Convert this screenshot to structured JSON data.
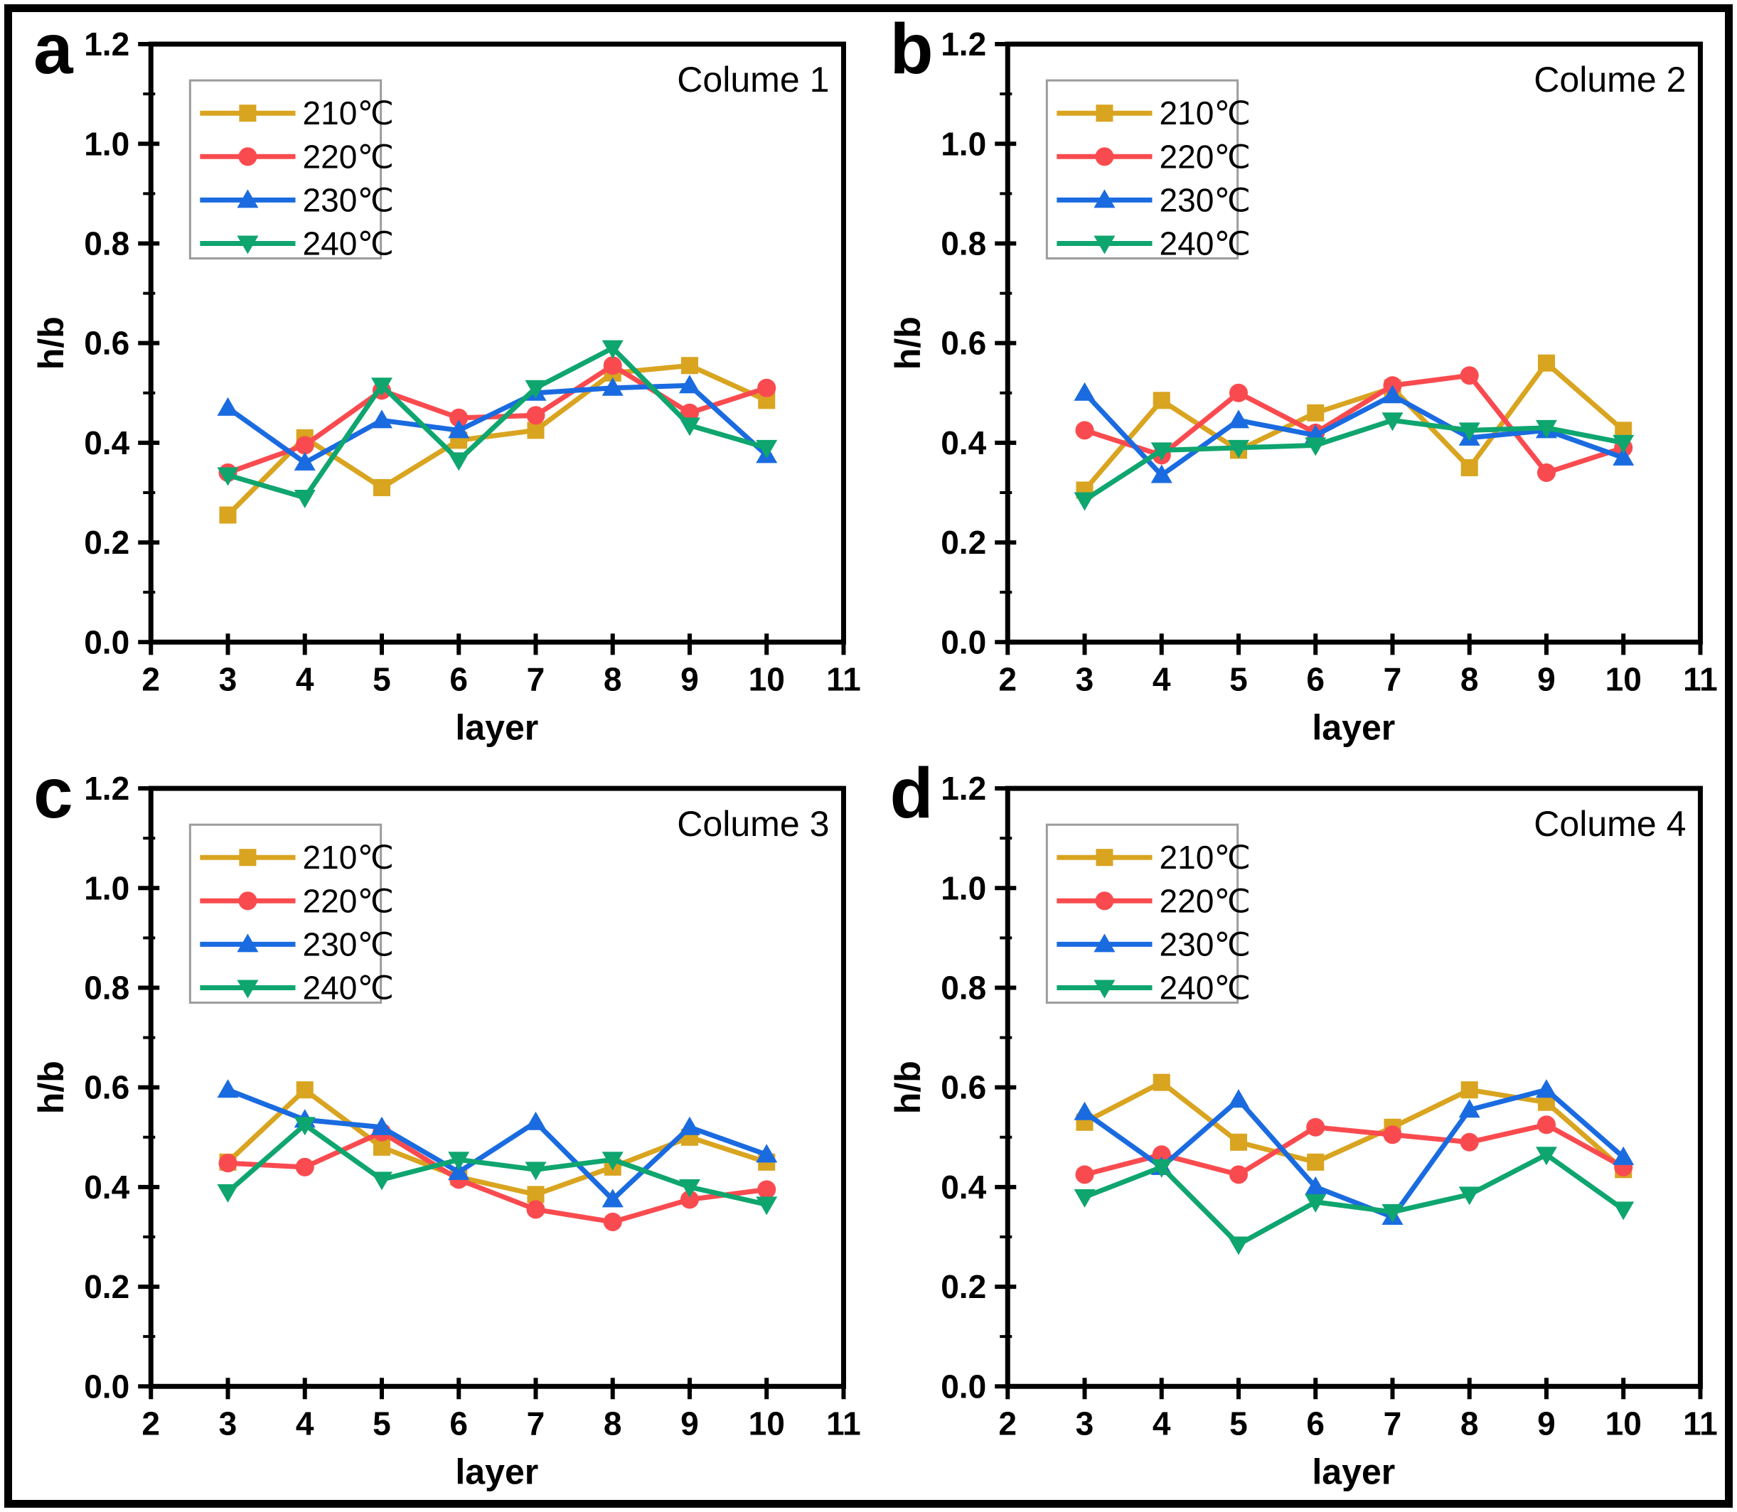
{
  "figure": {
    "background": "#ffffff",
    "border_color": "#000000",
    "panel_letters": [
      "a",
      "b",
      "c",
      "d"
    ]
  },
  "chart_data": [
    {
      "type": "line",
      "panel_label": "a",
      "title": "Colume 1",
      "xlabel": "layer",
      "ylabel": "h/b",
      "x": [
        3,
        4,
        5,
        6,
        7,
        8,
        9,
        10
      ],
      "xlim": [
        2,
        11
      ],
      "ylim": [
        0,
        1.2
      ],
      "xticks": [
        2,
        3,
        4,
        5,
        6,
        7,
        8,
        9,
        10,
        11
      ],
      "yticks": [
        0.0,
        0.2,
        0.4,
        0.6,
        0.8,
        1.0,
        1.2
      ],
      "ytick_labels": [
        "0.0",
        "0.2",
        "0.4",
        "0.6",
        "0.8",
        "1.0",
        "1.2"
      ],
      "grid": false,
      "legend_position": "upper-left",
      "series": [
        {
          "name": "210℃",
          "color": "#D9A420",
          "marker": "square",
          "values": [
            0.255,
            0.41,
            0.31,
            0.405,
            0.425,
            0.54,
            0.555,
            0.485
          ]
        },
        {
          "name": "220℃",
          "color": "#F94B4F",
          "marker": "circle",
          "values": [
            0.34,
            0.395,
            0.505,
            0.45,
            0.455,
            0.555,
            0.46,
            0.51
          ]
        },
        {
          "name": "230℃",
          "color": "#1A6BE0",
          "marker": "triangle-up",
          "values": [
            0.47,
            0.36,
            0.445,
            0.425,
            0.5,
            0.51,
            0.515,
            0.375
          ]
        },
        {
          "name": "240℃",
          "color": "#0FA56F",
          "marker": "triangle-down",
          "values": [
            0.335,
            0.29,
            0.515,
            0.365,
            0.51,
            0.59,
            0.435,
            0.39
          ]
        }
      ]
    },
    {
      "type": "line",
      "panel_label": "b",
      "title": "Colume 2",
      "xlabel": "layer",
      "ylabel": "h/b",
      "x": [
        3,
        4,
        5,
        6,
        7,
        8,
        9,
        10
      ],
      "xlim": [
        2,
        11
      ],
      "ylim": [
        0,
        1.2
      ],
      "xticks": [
        2,
        3,
        4,
        5,
        6,
        7,
        8,
        9,
        10,
        11
      ],
      "yticks": [
        0.0,
        0.2,
        0.4,
        0.6,
        0.8,
        1.0,
        1.2
      ],
      "ytick_labels": [
        "0.0",
        "0.2",
        "0.4",
        "0.6",
        "0.8",
        "1.0",
        "1.2"
      ],
      "grid": false,
      "legend_position": "upper-left",
      "series": [
        {
          "name": "210℃",
          "color": "#D9A420",
          "marker": "square",
          "values": [
            0.305,
            0.485,
            0.385,
            0.46,
            0.51,
            0.35,
            0.56,
            0.425
          ]
        },
        {
          "name": "220℃",
          "color": "#F94B4F",
          "marker": "circle",
          "values": [
            0.425,
            0.375,
            0.5,
            0.42,
            0.515,
            0.535,
            0.34,
            0.39
          ]
        },
        {
          "name": "230℃",
          "color": "#1A6BE0",
          "marker": "triangle-up",
          "values": [
            0.5,
            0.335,
            0.445,
            0.415,
            0.495,
            0.41,
            0.425,
            0.37
          ]
        },
        {
          "name": "240℃",
          "color": "#0FA56F",
          "marker": "triangle-down",
          "values": [
            0.285,
            0.385,
            0.39,
            0.395,
            0.445,
            0.425,
            0.43,
            0.4
          ]
        }
      ]
    },
    {
      "type": "line",
      "panel_label": "c",
      "title": "Colume 3",
      "xlabel": "layer",
      "ylabel": "h/b",
      "x": [
        3,
        4,
        5,
        6,
        7,
        8,
        9,
        10
      ],
      "xlim": [
        2,
        11
      ],
      "ylim": [
        0,
        1.2
      ],
      "xticks": [
        2,
        3,
        4,
        5,
        6,
        7,
        8,
        9,
        10,
        11
      ],
      "yticks": [
        0.0,
        0.2,
        0.4,
        0.6,
        0.8,
        1.0,
        1.2
      ],
      "ytick_labels": [
        "0.0",
        "0.2",
        "0.4",
        "0.6",
        "0.8",
        "1.0",
        "1.2"
      ],
      "grid": false,
      "legend_position": "upper-left",
      "series": [
        {
          "name": "210℃",
          "color": "#D9A420",
          "marker": "square",
          "values": [
            0.45,
            0.595,
            0.48,
            0.42,
            0.385,
            0.44,
            0.5,
            0.45
          ]
        },
        {
          "name": "220℃",
          "color": "#F94B4F",
          "marker": "circle",
          "values": [
            0.448,
            0.44,
            0.51,
            0.415,
            0.355,
            0.33,
            0.375,
            0.395
          ]
        },
        {
          "name": "230℃",
          "color": "#1A6BE0",
          "marker": "triangle-up",
          "values": [
            0.595,
            0.535,
            0.52,
            0.43,
            0.53,
            0.375,
            0.52,
            0.465
          ]
        },
        {
          "name": "240℃",
          "color": "#0FA56F",
          "marker": "triangle-down",
          "values": [
            0.39,
            0.525,
            0.415,
            0.455,
            0.435,
            0.455,
            0.4,
            0.365
          ]
        }
      ]
    },
    {
      "type": "line",
      "panel_label": "d",
      "title": "Colume 4",
      "xlabel": "layer",
      "ylabel": "h/b",
      "x": [
        3,
        4,
        5,
        6,
        7,
        8,
        9,
        10
      ],
      "xlim": [
        2,
        11
      ],
      "ylim": [
        0,
        1.2
      ],
      "xticks": [
        2,
        3,
        4,
        5,
        6,
        7,
        8,
        9,
        10,
        11
      ],
      "yticks": [
        0.0,
        0.2,
        0.4,
        0.6,
        0.8,
        1.0,
        1.2
      ],
      "ytick_labels": [
        "0.0",
        "0.2",
        "0.4",
        "0.6",
        "0.8",
        "1.0",
        "1.2"
      ],
      "grid": false,
      "legend_position": "upper-left",
      "series": [
        {
          "name": "210℃",
          "color": "#D9A420",
          "marker": "square",
          "values": [
            0.53,
            0.61,
            0.49,
            0.45,
            0.52,
            0.595,
            0.57,
            0.435
          ]
        },
        {
          "name": "220℃",
          "color": "#F94B4F",
          "marker": "circle",
          "values": [
            0.425,
            0.465,
            0.425,
            0.52,
            0.505,
            0.49,
            0.525,
            0.44
          ]
        },
        {
          "name": "230℃",
          "color": "#1A6BE0",
          "marker": "triangle-up",
          "values": [
            0.55,
            0.44,
            0.575,
            0.4,
            0.34,
            0.555,
            0.595,
            0.46
          ]
        },
        {
          "name": "240℃",
          "color": "#0FA56F",
          "marker": "triangle-down",
          "values": [
            0.38,
            0.44,
            0.285,
            0.37,
            0.35,
            0.385,
            0.465,
            0.355
          ]
        }
      ]
    }
  ]
}
